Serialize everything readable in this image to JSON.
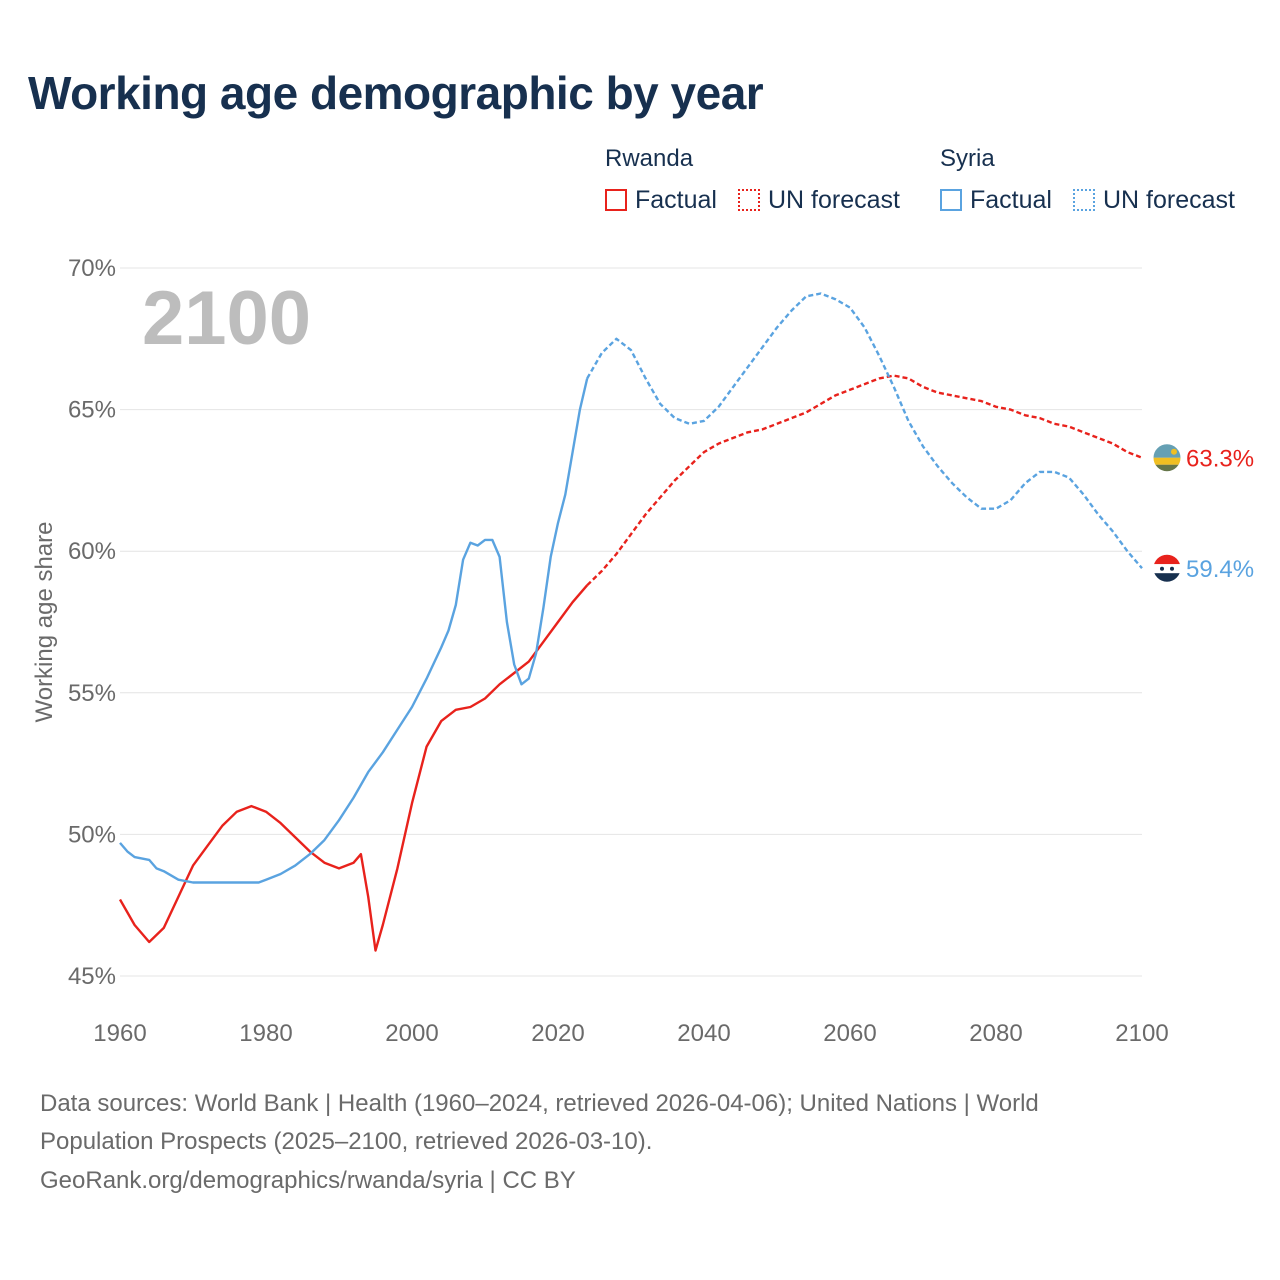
{
  "title": "Working age demographic by year",
  "legend": {
    "countries": [
      {
        "name": "Rwanda",
        "color": "#e8221c",
        "factual_label": "Factual",
        "forecast_label": "UN forecast"
      },
      {
        "name": "Syria",
        "color": "#5aa3e0",
        "factual_label": "Factual",
        "forecast_label": "UN forecast"
      }
    ]
  },
  "footer": {
    "line1": "Data sources: World Bank | Health (1960–2024, retrieved 2026-04-06); United Nations | World",
    "line2": "Population Prospects (2025–2100, retrieved 2026-03-10).",
    "line3": "GeoRank.org/demographics/rwanda/syria | CC BY"
  },
  "chart_data": {
    "type": "line",
    "title": "Working age demographic by year",
    "ylabel": "Working age share",
    "xlabel": "",
    "current_year_label": "2100",
    "xlim": [
      1960,
      2100
    ],
    "ylim": [
      45,
      70
    ],
    "x_ticks": [
      "1960",
      "1980",
      "2000",
      "2020",
      "2040",
      "2060",
      "2080",
      "2100"
    ],
    "y_ticks": [
      "45%",
      "50%",
      "55%",
      "60%",
      "65%",
      "70%"
    ],
    "grid": true,
    "forecast_start": 2024,
    "series": [
      {
        "name": "Rwanda",
        "color": "#e8221c",
        "end_label": "63.3%",
        "flag": "rwanda-flag",
        "points": [
          [
            1960,
            47.7
          ],
          [
            1962,
            46.8
          ],
          [
            1964,
            46.2
          ],
          [
            1966,
            46.7
          ],
          [
            1968,
            47.8
          ],
          [
            1970,
            48.9
          ],
          [
            1972,
            49.6
          ],
          [
            1974,
            50.3
          ],
          [
            1976,
            50.8
          ],
          [
            1978,
            51.0
          ],
          [
            1980,
            50.8
          ],
          [
            1982,
            50.4
          ],
          [
            1984,
            49.9
          ],
          [
            1986,
            49.4
          ],
          [
            1988,
            49.0
          ],
          [
            1990,
            48.8
          ],
          [
            1992,
            49.0
          ],
          [
            1993,
            49.3
          ],
          [
            1994,
            47.8
          ],
          [
            1995,
            45.9
          ],
          [
            1996,
            46.8
          ],
          [
            1998,
            48.8
          ],
          [
            2000,
            51.1
          ],
          [
            2002,
            53.1
          ],
          [
            2004,
            54.0
          ],
          [
            2006,
            54.4
          ],
          [
            2008,
            54.5
          ],
          [
            2010,
            54.8
          ],
          [
            2012,
            55.3
          ],
          [
            2014,
            55.7
          ],
          [
            2016,
            56.1
          ],
          [
            2018,
            56.8
          ],
          [
            2020,
            57.5
          ],
          [
            2022,
            58.2
          ],
          [
            2024,
            58.8
          ],
          [
            2026,
            59.3
          ],
          [
            2028,
            59.9
          ],
          [
            2030,
            60.6
          ],
          [
            2032,
            61.3
          ],
          [
            2034,
            61.9
          ],
          [
            2036,
            62.5
          ],
          [
            2038,
            63.0
          ],
          [
            2040,
            63.5
          ],
          [
            2042,
            63.8
          ],
          [
            2044,
            64.0
          ],
          [
            2046,
            64.2
          ],
          [
            2048,
            64.3
          ],
          [
            2050,
            64.5
          ],
          [
            2052,
            64.7
          ],
          [
            2054,
            64.9
          ],
          [
            2056,
            65.2
          ],
          [
            2058,
            65.5
          ],
          [
            2060,
            65.7
          ],
          [
            2062,
            65.9
          ],
          [
            2064,
            66.1
          ],
          [
            2066,
            66.2
          ],
          [
            2068,
            66.1
          ],
          [
            2070,
            65.8
          ],
          [
            2072,
            65.6
          ],
          [
            2074,
            65.5
          ],
          [
            2076,
            65.4
          ],
          [
            2078,
            65.3
          ],
          [
            2080,
            65.1
          ],
          [
            2082,
            65.0
          ],
          [
            2084,
            64.8
          ],
          [
            2086,
            64.7
          ],
          [
            2088,
            64.5
          ],
          [
            2090,
            64.4
          ],
          [
            2092,
            64.2
          ],
          [
            2094,
            64.0
          ],
          [
            2096,
            63.8
          ],
          [
            2098,
            63.5
          ],
          [
            2100,
            63.3
          ]
        ]
      },
      {
        "name": "Syria",
        "color": "#5aa3e0",
        "end_label": "59.4%",
        "flag": "syria-flag",
        "points": [
          [
            1960,
            49.7
          ],
          [
            1961,
            49.4
          ],
          [
            1962,
            49.2
          ],
          [
            1964,
            49.1
          ],
          [
            1965,
            48.8
          ],
          [
            1966,
            48.7
          ],
          [
            1968,
            48.4
          ],
          [
            1970,
            48.3
          ],
          [
            1972,
            48.3
          ],
          [
            1974,
            48.3
          ],
          [
            1976,
            48.3
          ],
          [
            1978,
            48.3
          ],
          [
            1979,
            48.3
          ],
          [
            1980,
            48.4
          ],
          [
            1982,
            48.6
          ],
          [
            1984,
            48.9
          ],
          [
            1986,
            49.3
          ],
          [
            1988,
            49.8
          ],
          [
            1990,
            50.5
          ],
          [
            1992,
            51.3
          ],
          [
            1994,
            52.2
          ],
          [
            1996,
            52.9
          ],
          [
            1998,
            53.7
          ],
          [
            2000,
            54.5
          ],
          [
            2002,
            55.5
          ],
          [
            2004,
            56.6
          ],
          [
            2005,
            57.2
          ],
          [
            2006,
            58.1
          ],
          [
            2007,
            59.7
          ],
          [
            2008,
            60.3
          ],
          [
            2009,
            60.2
          ],
          [
            2010,
            60.4
          ],
          [
            2011,
            60.4
          ],
          [
            2012,
            59.8
          ],
          [
            2013,
            57.5
          ],
          [
            2014,
            56.0
          ],
          [
            2015,
            55.3
          ],
          [
            2016,
            55.5
          ],
          [
            2017,
            56.4
          ],
          [
            2018,
            58.0
          ],
          [
            2019,
            59.8
          ],
          [
            2020,
            61.0
          ],
          [
            2021,
            62.0
          ],
          [
            2022,
            63.5
          ],
          [
            2023,
            65.0
          ],
          [
            2024,
            66.1
          ],
          [
            2026,
            67.0
          ],
          [
            2028,
            67.5
          ],
          [
            2030,
            67.1
          ],
          [
            2032,
            66.1
          ],
          [
            2034,
            65.2
          ],
          [
            2036,
            64.7
          ],
          [
            2038,
            64.5
          ],
          [
            2040,
            64.6
          ],
          [
            2042,
            65.1
          ],
          [
            2044,
            65.8
          ],
          [
            2046,
            66.5
          ],
          [
            2048,
            67.2
          ],
          [
            2050,
            67.9
          ],
          [
            2052,
            68.5
          ],
          [
            2054,
            69.0
          ],
          [
            2056,
            69.1
          ],
          [
            2058,
            68.9
          ],
          [
            2060,
            68.6
          ],
          [
            2062,
            67.9
          ],
          [
            2064,
            66.9
          ],
          [
            2066,
            65.8
          ],
          [
            2068,
            64.6
          ],
          [
            2070,
            63.7
          ],
          [
            2072,
            63.0
          ],
          [
            2074,
            62.4
          ],
          [
            2076,
            61.9
          ],
          [
            2078,
            61.5
          ],
          [
            2080,
            61.5
          ],
          [
            2082,
            61.8
          ],
          [
            2084,
            62.4
          ],
          [
            2086,
            62.8
          ],
          [
            2088,
            62.8
          ],
          [
            2090,
            62.6
          ],
          [
            2092,
            62.0
          ],
          [
            2094,
            61.3
          ],
          [
            2096,
            60.7
          ],
          [
            2098,
            60.0
          ],
          [
            2100,
            59.4
          ]
        ]
      }
    ]
  }
}
